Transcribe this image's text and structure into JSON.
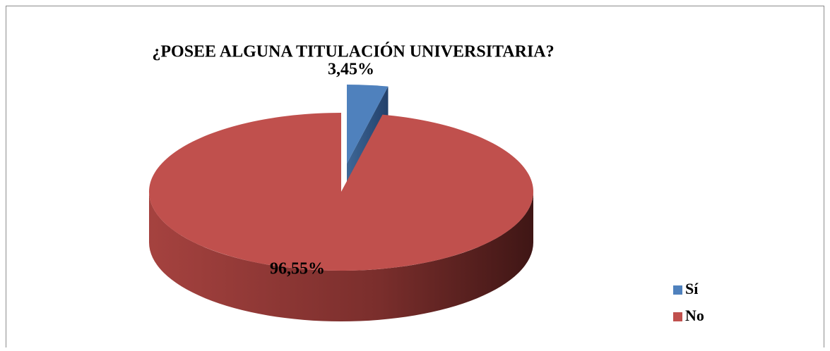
{
  "chart_data": {
    "type": "pie",
    "title": "¿POSEE ALGUNA TITULACIÓN UNIVERSITARIA?",
    "categories": [
      "Sí",
      "No"
    ],
    "values": [
      3.45,
      96.55
    ],
    "value_labels": [
      "3,45%",
      "96,55%"
    ],
    "colors": [
      "#4f81bd",
      "#c0504d"
    ],
    "legend": "right"
  }
}
